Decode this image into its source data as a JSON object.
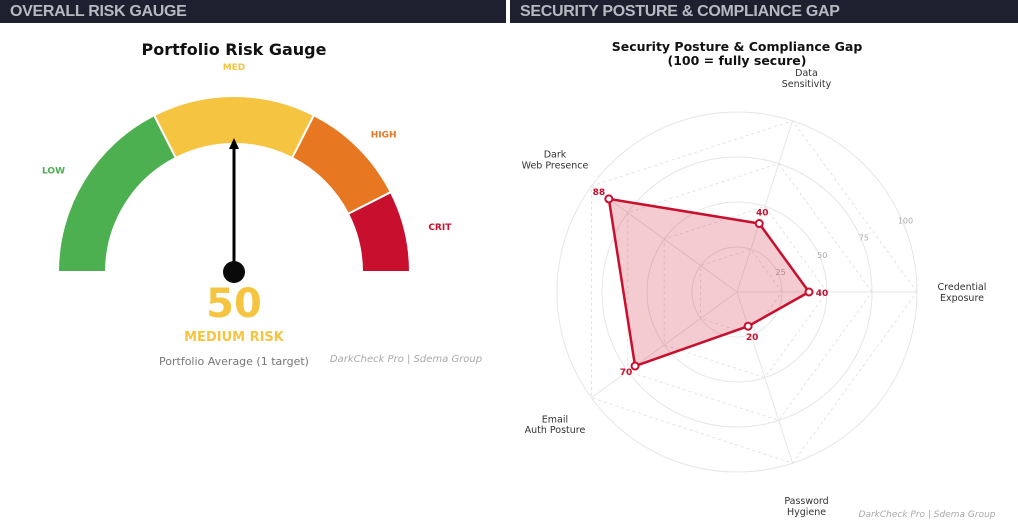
{
  "headers": {
    "left": "OVERALL RISK GAUGE",
    "right": "SECURITY POSTURE & COMPLIANCE GAP"
  },
  "chart_data": [
    {
      "type": "gauge",
      "title": "Portfolio Risk Gauge",
      "value": 50,
      "range": [
        0,
        100
      ],
      "bands": [
        {
          "label": "LOW",
          "from": 0,
          "to": 35,
          "color": "#4caf50"
        },
        {
          "label": "MED",
          "from": 35,
          "to": 65,
          "color": "#f5c542"
        },
        {
          "label": "HIGH",
          "from": 65,
          "to": 85,
          "color": "#e87722"
        },
        {
          "label": "CRIT",
          "from": 85,
          "to": 100,
          "color": "#c8102e"
        }
      ],
      "value_label": "50",
      "risk_label": "MEDIUM RISK",
      "subtitle": "Portfolio Average  (1 target)",
      "credit": "DarkCheck Pro  |  Sdema Group"
    },
    {
      "type": "radar",
      "title": "Security Posture & Compliance Gap",
      "subtitle": "(100 = fully secure)",
      "axes": [
        "Credential Exposure",
        "Data Sensitivity",
        "Dark Web Presence",
        "Email Auth Posture",
        "Password Hygiene"
      ],
      "values": [
        40,
        40,
        88,
        70,
        20
      ],
      "rlim": [
        0,
        100
      ],
      "rticks": [
        25,
        50,
        75,
        100
      ],
      "color": "#c8102e",
      "credit": "DarkCheck Pro  |  Sdema Group"
    }
  ]
}
